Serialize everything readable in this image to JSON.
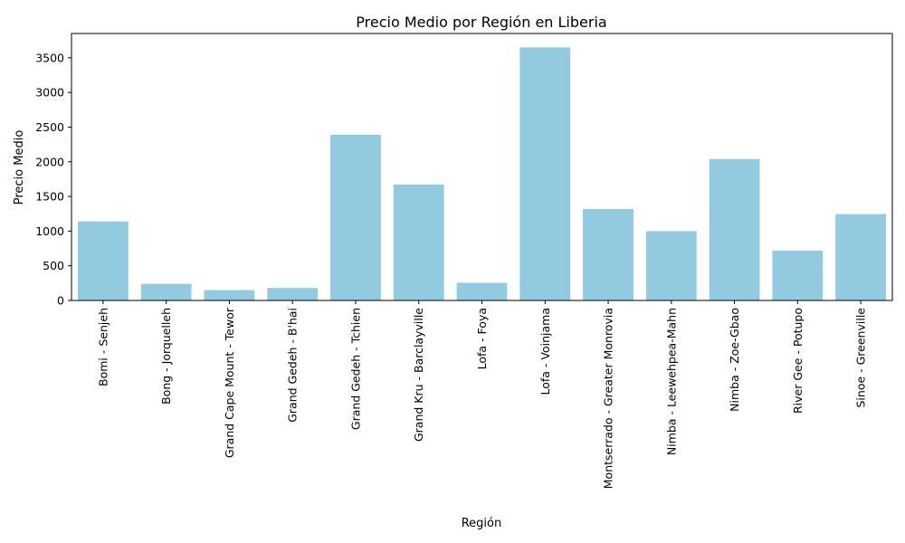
{
  "chart_data": {
    "type": "bar",
    "title": "Precio Medio por Región en Liberia",
    "xlabel": "Región",
    "ylabel": "Precio Medio",
    "ylim": [
      0,
      3850
    ],
    "yticks": [
      0,
      500,
      1000,
      1500,
      2000,
      2500,
      3000,
      3500
    ],
    "grid": false,
    "legend": "none",
    "bar_color": "#92cbe0",
    "categories": [
      "Bomi - Senjeh",
      "Bong - Jorquelleh",
      "Grand Cape Mount - Tewor",
      "Grand Gedeh - B'hai",
      "Grand Gedeh - Tchien",
      "Grand Kru - Barclayville",
      "Lofa - Foya",
      "Lofa - Voinjama",
      "Montserrado - Greater Monrovia",
      "Nimba - Leewehpea-Mahn",
      "Nimba - Zoe-Gbao",
      "River Gee - Potupo",
      "Sinoe - Greenville"
    ],
    "values": [
      1140,
      240,
      150,
      180,
      2390,
      1670,
      255,
      3650,
      1320,
      1000,
      2040,
      720,
      1245
    ]
  }
}
